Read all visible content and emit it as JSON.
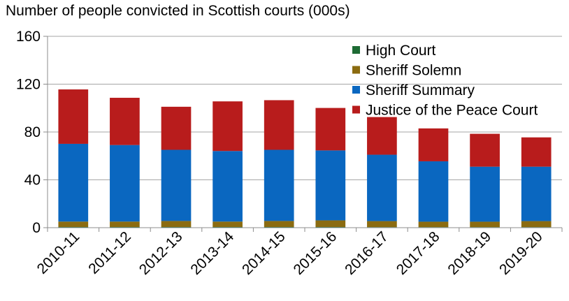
{
  "chart_data": {
    "type": "bar",
    "stacked": true,
    "title": "Number of people convicted in Scottish courts (000s)",
    "xlabel": "",
    "ylabel": "",
    "categories": [
      "2010-11",
      "2011-12",
      "2012-13",
      "2013-14",
      "2014-15",
      "2015-16",
      "2016-17",
      "2017-18",
      "2018-19",
      "2019-20"
    ],
    "ylim": [
      0,
      160
    ],
    "yticks": [
      0,
      40,
      80,
      120,
      160
    ],
    "grid": true,
    "legend": "top-right",
    "series": [
      {
        "name": "High Court",
        "color": "#1E6B34",
        "values": [
          0.6,
          0.6,
          0.6,
          0.6,
          0.6,
          0.6,
          0.5,
          0.5,
          0.5,
          0.5
        ]
      },
      {
        "name": "Sheriff Solemn",
        "color": "#8B6B10",
        "values": [
          4.5,
          4.5,
          5.0,
          4.5,
          5.0,
          5.5,
          5.0,
          4.5,
          4.5,
          5.0
        ]
      },
      {
        "name": "Sheriff Summary",
        "color": "#0A67C0",
        "values": [
          65.0,
          64.0,
          59.5,
          59.0,
          59.5,
          58.5,
          55.5,
          50.5,
          46.0,
          45.5
        ]
      },
      {
        "name": "Justice of the Peace Court",
        "color": "#B81C1C",
        "values": [
          45.5,
          39.5,
          36.0,
          41.5,
          41.5,
          35.5,
          31.5,
          27.5,
          27.5,
          24.5
        ]
      }
    ]
  }
}
